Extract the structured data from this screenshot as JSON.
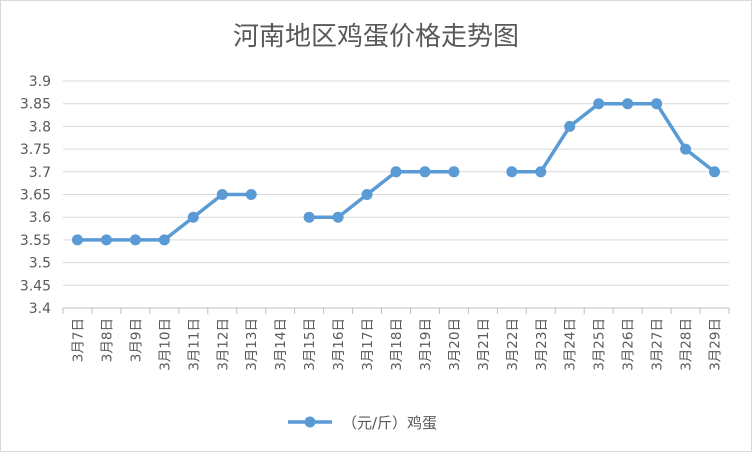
{
  "chart_data": {
    "type": "line",
    "title": "河南地区鸡蛋价格走势图",
    "xlabel": "",
    "ylabel": "",
    "categories": [
      "3月7日",
      "3月8日",
      "3月9日",
      "3月10日",
      "3月11日",
      "3月12日",
      "3月13日",
      "3月14日",
      "3月15日",
      "3月16日",
      "3月17日",
      "3月18日",
      "3月19日",
      "3月20日",
      "3月21日",
      "3月22日",
      "3月23日",
      "3月24日",
      "3月25日",
      "3月26日",
      "3月27日",
      "3月28日",
      "3月29日"
    ],
    "series": [
      {
        "name": "（元/斤）鸡蛋",
        "values": [
          3.55,
          3.55,
          3.55,
          3.55,
          3.6,
          3.65,
          3.65,
          null,
          3.6,
          3.6,
          3.65,
          3.7,
          3.7,
          3.7,
          null,
          3.7,
          3.7,
          3.8,
          3.85,
          3.85,
          3.85,
          3.75,
          3.7
        ]
      }
    ],
    "yticks": [
      "3.4",
      "3.45",
      "3.5",
      "3.55",
      "3.6",
      "3.65",
      "3.7",
      "3.75",
      "3.8",
      "3.85",
      "3.9"
    ],
    "ylim": [
      3.4,
      3.9
    ],
    "grid": true,
    "legend_position": "bottom",
    "colors": {
      "series": "#5b9bd5",
      "grid": "#d9d9d9",
      "axis": "#bfbfbf",
      "text": "#595959"
    }
  }
}
